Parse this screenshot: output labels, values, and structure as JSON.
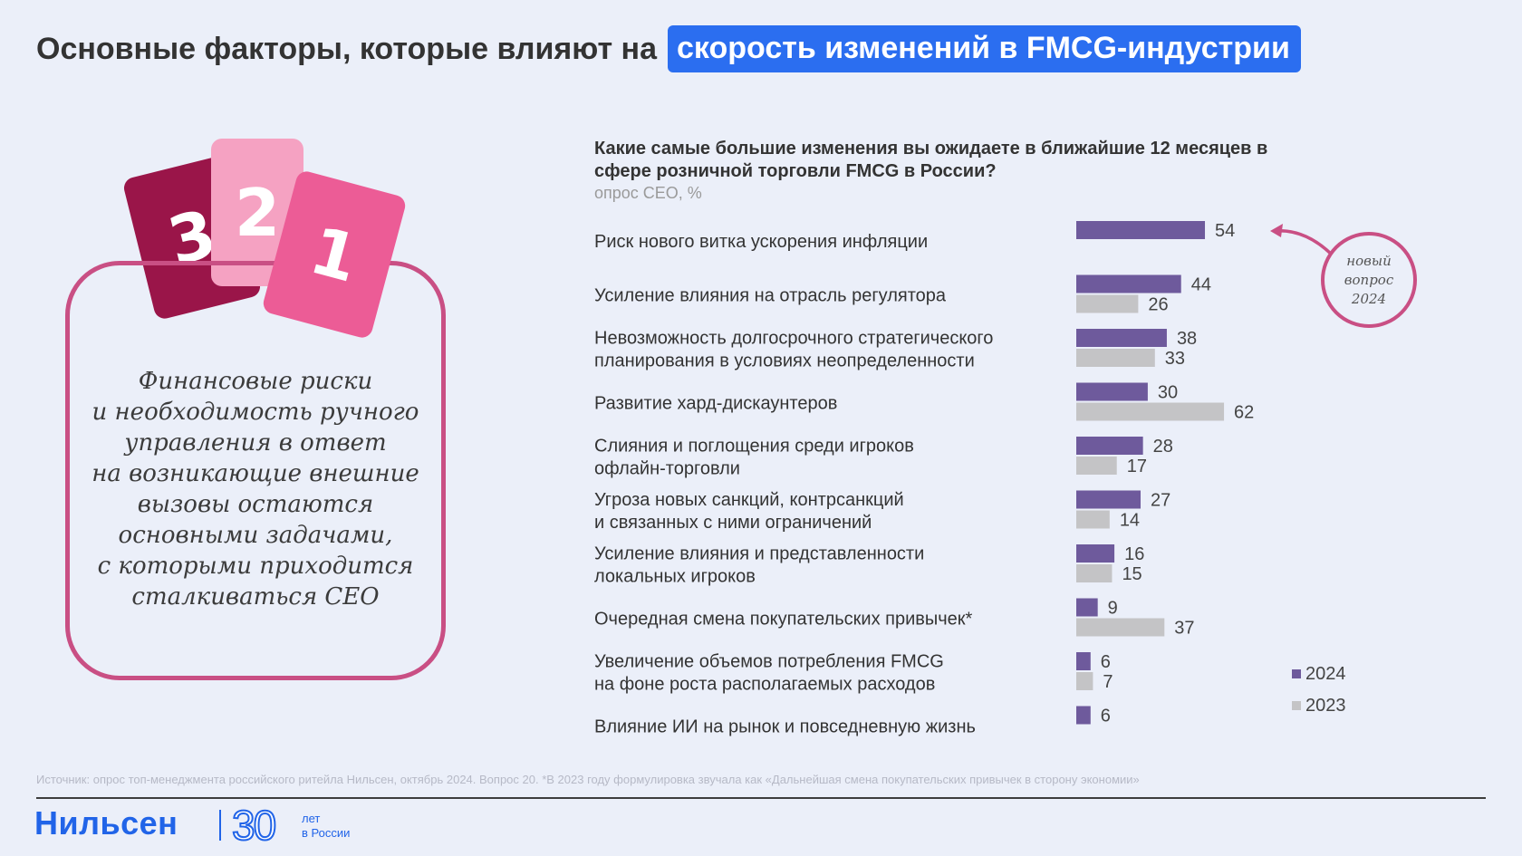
{
  "title": {
    "plain": "Основные факторы, которые влияют на",
    "highlight": "скорость изменений в FMCG-индустрии"
  },
  "colors": {
    "accent": "#2b6ef0",
    "series_2024": "#6e5a9c",
    "series_2023": "#c4c4c6",
    "frame": "#c94f84"
  },
  "cards": [
    "3",
    "2",
    "1"
  ],
  "quote": "Финансовые риски\nи необходимость ручного\nуправления в ответ\nна возникающие внешние\nвызовы остаются\nосновными задачами,\nс которыми приходится\nсталкиваться CEO",
  "note": "новый\nвопрос\n2024",
  "chart_data": {
    "type": "bar",
    "orientation": "horizontal",
    "title": "Какие самые большие изменения вы ожидаете в ближайшие 12 месяцев в сфере розничной торговли FMCG в России?",
    "subtitle": "опрос CEO, %",
    "categories": [
      "Риск нового витка ускорения инфляции",
      "Усиление влияния на отрасль регулятора",
      "Невозможность долгосрочного стратегического\nпланирования в условиях неопределенности",
      "Развитие хард-дискаунтеров",
      "Слияния и поглощения среди игроков\nофлайн-торговли",
      "Угроза новых санкций, контрсанкций\nи связанных с ними ограничений",
      "Усиление влияния и представленности\nлокальных игроков",
      "Очередная смена покупательских привычек*",
      "Увеличение объемов потребления FMCG\nна фоне роста располагаемых расходов",
      "Влияние ИИ на рынок и повседневную жизнь"
    ],
    "series": [
      {
        "name": "2024",
        "values": [
          54,
          44,
          38,
          30,
          28,
          27,
          16,
          9,
          6,
          6
        ]
      },
      {
        "name": "2023",
        "values": [
          null,
          26,
          33,
          62,
          17,
          14,
          15,
          37,
          7,
          null
        ]
      }
    ],
    "legend": "bottom-right",
    "grid": false
  },
  "footer": {
    "source": "Источник: опрос топ-менеджмента российского ритейла Нильсен, октябрь 2024. Вопрос 20. *В 2023 году формулировка звучала как «Дальнейшая смена покупательских привычек в сторону экономии»",
    "logo": "Нильсен",
    "anniversary_number": "30",
    "anniversary_text": "лет\nв России"
  }
}
